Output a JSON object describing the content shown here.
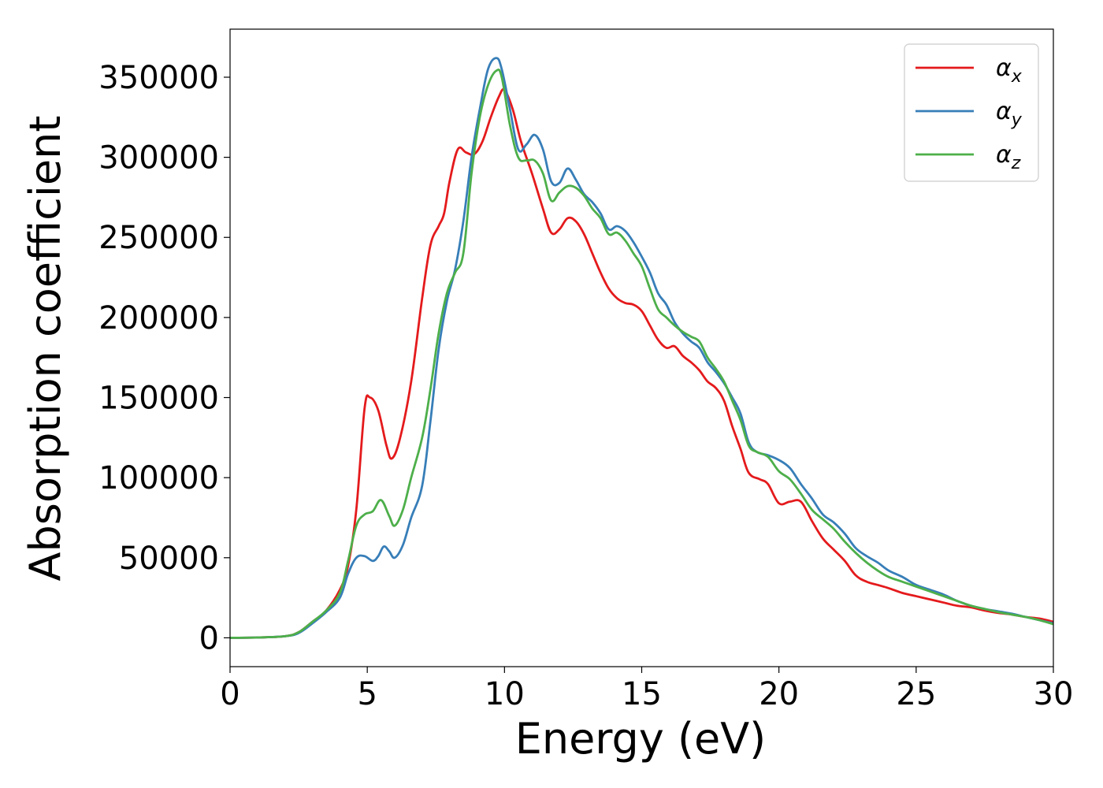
{
  "chart_data": {
    "type": "line",
    "title": "",
    "xlabel": "Energy (eV)",
    "ylabel": "Absorption coefficient",
    "xlim": [
      0,
      30
    ],
    "ylim": [
      -18000,
      380000
    ],
    "xticks": [
      0,
      5,
      10,
      15,
      20,
      25,
      30
    ],
    "xtick_labels": [
      "0",
      "5",
      "10",
      "15",
      "20",
      "25",
      "30"
    ],
    "yticks": [
      0,
      50000,
      100000,
      150000,
      200000,
      250000,
      300000,
      350000
    ],
    "ytick_labels": [
      "0",
      "50000",
      "100000",
      "150000",
      "200000",
      "250000",
      "300000",
      "350000"
    ],
    "grid": false,
    "legend_position": "top-right",
    "series": [
      {
        "name": "α_x",
        "legend_base": "α",
        "legend_sub": "x",
        "color": "#e41a1c",
        "points": [
          [
            0,
            0
          ],
          [
            1,
            200
          ],
          [
            2,
            1000
          ],
          [
            2.5,
            3500
          ],
          [
            3,
            10000
          ],
          [
            3.5,
            17000
          ],
          [
            4,
            30000
          ],
          [
            4.3,
            45000
          ],
          [
            4.6,
            80000
          ],
          [
            4.9,
            143000
          ],
          [
            5.1,
            150000
          ],
          [
            5.4,
            142000
          ],
          [
            5.7,
            120000
          ],
          [
            5.9,
            112000
          ],
          [
            6.2,
            125000
          ],
          [
            6.6,
            160000
          ],
          [
            7.0,
            212000
          ],
          [
            7.3,
            245000
          ],
          [
            7.6,
            257000
          ],
          [
            7.8,
            265000
          ],
          [
            8.0,
            285000
          ],
          [
            8.3,
            305000
          ],
          [
            8.6,
            303000
          ],
          [
            8.9,
            302000
          ],
          [
            9.2,
            310000
          ],
          [
            9.5,
            325000
          ],
          [
            9.8,
            338000
          ],
          [
            10.0,
            342000
          ],
          [
            10.3,
            330000
          ],
          [
            10.6,
            310000
          ],
          [
            11.0,
            290000
          ],
          [
            11.4,
            268000
          ],
          [
            11.7,
            253000
          ],
          [
            12.0,
            255000
          ],
          [
            12.3,
            262000
          ],
          [
            12.6,
            260000
          ],
          [
            12.9,
            252000
          ],
          [
            13.2,
            240000
          ],
          [
            13.5,
            228000
          ],
          [
            13.8,
            218000
          ],
          [
            14.1,
            212000
          ],
          [
            14.4,
            209000
          ],
          [
            14.7,
            208000
          ],
          [
            15.0,
            204000
          ],
          [
            15.3,
            195000
          ],
          [
            15.6,
            186000
          ],
          [
            15.9,
            181000
          ],
          [
            16.2,
            182000
          ],
          [
            16.5,
            176000
          ],
          [
            16.8,
            172000
          ],
          [
            17.1,
            167000
          ],
          [
            17.4,
            160000
          ],
          [
            17.7,
            156000
          ],
          [
            18.0,
            148000
          ],
          [
            18.3,
            132000
          ],
          [
            18.6,
            118000
          ],
          [
            18.9,
            103000
          ],
          [
            19.3,
            99000
          ],
          [
            19.6,
            96000
          ],
          [
            20.0,
            84000
          ],
          [
            20.4,
            85000
          ],
          [
            20.8,
            85000
          ],
          [
            21.2,
            73000
          ],
          [
            21.6,
            62000
          ],
          [
            22.0,
            55000
          ],
          [
            22.4,
            48000
          ],
          [
            22.8,
            39000
          ],
          [
            23.2,
            35000
          ],
          [
            23.6,
            33000
          ],
          [
            24.0,
            31000
          ],
          [
            24.5,
            28000
          ],
          [
            25.0,
            26000
          ],
          [
            25.5,
            24000
          ],
          [
            26.0,
            22000
          ],
          [
            26.5,
            20000
          ],
          [
            27.0,
            19000
          ],
          [
            27.5,
            17000
          ],
          [
            28.0,
            15500
          ],
          [
            28.5,
            14500
          ],
          [
            29.0,
            13000
          ],
          [
            29.5,
            12000
          ],
          [
            30.0,
            10000
          ]
        ]
      },
      {
        "name": "α_y",
        "legend_base": "α",
        "legend_sub": "y",
        "color": "#377eb8",
        "points": [
          [
            0,
            0
          ],
          [
            1,
            200
          ],
          [
            2,
            1000
          ],
          [
            2.5,
            3000
          ],
          [
            3,
            9000
          ],
          [
            3.5,
            16000
          ],
          [
            4,
            25000
          ],
          [
            4.3,
            40000
          ],
          [
            4.6,
            50000
          ],
          [
            4.9,
            51000
          ],
          [
            5.2,
            48000
          ],
          [
            5.4,
            51000
          ],
          [
            5.6,
            57000
          ],
          [
            5.8,
            54000
          ],
          [
            6.0,
            50000
          ],
          [
            6.3,
            58000
          ],
          [
            6.6,
            75000
          ],
          [
            7.0,
            95000
          ],
          [
            7.3,
            135000
          ],
          [
            7.6,
            180000
          ],
          [
            7.9,
            210000
          ],
          [
            8.2,
            230000
          ],
          [
            8.5,
            260000
          ],
          [
            8.8,
            300000
          ],
          [
            9.1,
            330000
          ],
          [
            9.4,
            355000
          ],
          [
            9.7,
            362000
          ],
          [
            9.9,
            355000
          ],
          [
            10.2,
            330000
          ],
          [
            10.5,
            305000
          ],
          [
            10.8,
            308000
          ],
          [
            11.1,
            314000
          ],
          [
            11.4,
            305000
          ],
          [
            11.7,
            285000
          ],
          [
            12.0,
            284000
          ],
          [
            12.3,
            293000
          ],
          [
            12.6,
            286000
          ],
          [
            12.9,
            277000
          ],
          [
            13.2,
            272000
          ],
          [
            13.5,
            265000
          ],
          [
            13.8,
            255000
          ],
          [
            14.1,
            257000
          ],
          [
            14.4,
            254000
          ],
          [
            14.7,
            247000
          ],
          [
            15.0,
            238000
          ],
          [
            15.3,
            228000
          ],
          [
            15.6,
            215000
          ],
          [
            15.9,
            208000
          ],
          [
            16.2,
            197000
          ],
          [
            16.5,
            190000
          ],
          [
            16.8,
            185000
          ],
          [
            17.1,
            181000
          ],
          [
            17.4,
            172000
          ],
          [
            17.7,
            166000
          ],
          [
            18.0,
            159000
          ],
          [
            18.3,
            150000
          ],
          [
            18.6,
            140000
          ],
          [
            18.9,
            122000
          ],
          [
            19.2,
            116000
          ],
          [
            19.6,
            114000
          ],
          [
            20.0,
            111000
          ],
          [
            20.4,
            106000
          ],
          [
            20.8,
            96000
          ],
          [
            21.2,
            87000
          ],
          [
            21.6,
            77000
          ],
          [
            22.0,
            72000
          ],
          [
            22.4,
            65000
          ],
          [
            22.8,
            56000
          ],
          [
            23.2,
            51000
          ],
          [
            23.6,
            47000
          ],
          [
            24.0,
            42000
          ],
          [
            24.5,
            38000
          ],
          [
            25.0,
            33000
          ],
          [
            25.5,
            30000
          ],
          [
            26.0,
            27000
          ],
          [
            26.5,
            23000
          ],
          [
            27.0,
            20000
          ],
          [
            27.5,
            18000
          ],
          [
            28.0,
            16500
          ],
          [
            28.5,
            15000
          ],
          [
            29.0,
            13000
          ],
          [
            29.5,
            11000
          ],
          [
            30.0,
            9000
          ]
        ]
      },
      {
        "name": "α_z",
        "legend_base": "α",
        "legend_sub": "z",
        "color": "#4daf4a",
        "points": [
          [
            0,
            0
          ],
          [
            1,
            200
          ],
          [
            2,
            1000
          ],
          [
            2.5,
            3500
          ],
          [
            3,
            10000
          ],
          [
            3.5,
            17000
          ],
          [
            4,
            28000
          ],
          [
            4.3,
            48000
          ],
          [
            4.6,
            70000
          ],
          [
            4.9,
            77000
          ],
          [
            5.2,
            79000
          ],
          [
            5.5,
            86000
          ],
          [
            5.8,
            76000
          ],
          [
            6.0,
            70000
          ],
          [
            6.3,
            80000
          ],
          [
            6.6,
            100000
          ],
          [
            7.0,
            125000
          ],
          [
            7.3,
            155000
          ],
          [
            7.6,
            190000
          ],
          [
            7.9,
            215000
          ],
          [
            8.2,
            228000
          ],
          [
            8.5,
            240000
          ],
          [
            8.8,
            290000
          ],
          [
            9.1,
            325000
          ],
          [
            9.4,
            345000
          ],
          [
            9.7,
            354000
          ],
          [
            9.9,
            350000
          ],
          [
            10.2,
            320000
          ],
          [
            10.5,
            300000
          ],
          [
            10.8,
            298000
          ],
          [
            11.1,
            298000
          ],
          [
            11.4,
            290000
          ],
          [
            11.7,
            273000
          ],
          [
            12.0,
            278000
          ],
          [
            12.3,
            282000
          ],
          [
            12.6,
            281000
          ],
          [
            12.9,
            276000
          ],
          [
            13.2,
            268000
          ],
          [
            13.5,
            262000
          ],
          [
            13.8,
            252000
          ],
          [
            14.1,
            253000
          ],
          [
            14.4,
            248000
          ],
          [
            14.7,
            240000
          ],
          [
            15.0,
            232000
          ],
          [
            15.3,
            218000
          ],
          [
            15.6,
            205000
          ],
          [
            15.9,
            200000
          ],
          [
            16.2,
            195000
          ],
          [
            16.5,
            191000
          ],
          [
            16.8,
            188000
          ],
          [
            17.1,
            185000
          ],
          [
            17.4,
            175000
          ],
          [
            17.7,
            168000
          ],
          [
            18.0,
            160000
          ],
          [
            18.3,
            148000
          ],
          [
            18.6,
            136000
          ],
          [
            18.9,
            120000
          ],
          [
            19.2,
            116000
          ],
          [
            19.6,
            113000
          ],
          [
            20.0,
            104000
          ],
          [
            20.4,
            99000
          ],
          [
            20.8,
            90000
          ],
          [
            21.2,
            80000
          ],
          [
            21.6,
            74000
          ],
          [
            22.0,
            68000
          ],
          [
            22.4,
            60000
          ],
          [
            22.8,
            53000
          ],
          [
            23.2,
            47000
          ],
          [
            23.6,
            42000
          ],
          [
            24.0,
            38000
          ],
          [
            24.5,
            35000
          ],
          [
            25.0,
            32000
          ],
          [
            25.5,
            29000
          ],
          [
            26.0,
            26000
          ],
          [
            26.5,
            23000
          ],
          [
            27.0,
            20000
          ],
          [
            27.5,
            18000
          ],
          [
            28.0,
            16000
          ],
          [
            28.5,
            14500
          ],
          [
            29.0,
            13000
          ],
          [
            29.5,
            11000
          ],
          [
            30.0,
            8500
          ]
        ]
      }
    ]
  }
}
